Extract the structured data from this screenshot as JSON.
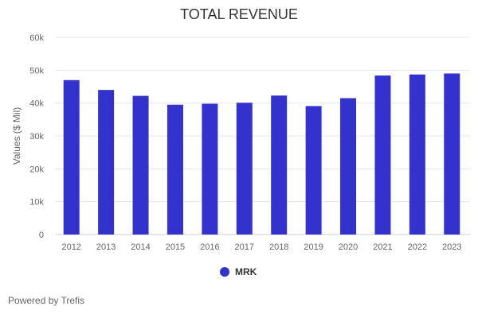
{
  "chart_data": {
    "type": "bar",
    "title": "TOTAL REVENUE",
    "xlabel": "",
    "ylabel": "Values ($ Mil)",
    "ylim": [
      0,
      60000
    ],
    "yticks": [
      0,
      10000,
      20000,
      30000,
      40000,
      50000,
      60000
    ],
    "ytick_labels": [
      "0",
      "10k",
      "20k",
      "30k",
      "40k",
      "50k",
      "60k"
    ],
    "categories": [
      "2012",
      "2013",
      "2014",
      "2015",
      "2016",
      "2017",
      "2018",
      "2019",
      "2020",
      "2021",
      "2022",
      "2023"
    ],
    "series": [
      {
        "name": "MRK",
        "color": "#3333cc",
        "values": [
          47000,
          44000,
          42200,
          39500,
          39800,
          40100,
          42300,
          39100,
          41500,
          48400,
          48700,
          49000
        ]
      }
    ],
    "legend": "bottom-center",
    "grid": true
  },
  "credit": "Powered by Trefis"
}
